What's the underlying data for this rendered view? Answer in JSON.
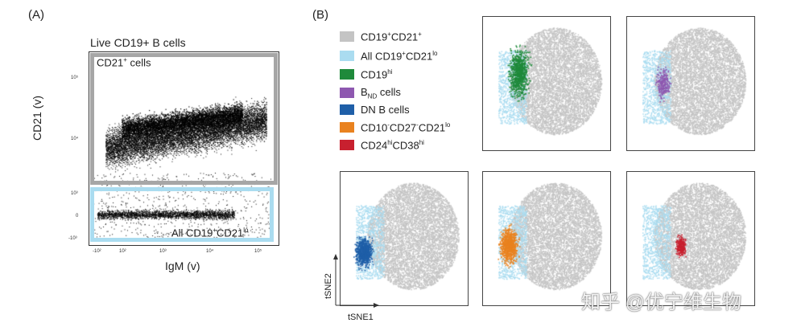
{
  "panel_a": {
    "letter": "(A)",
    "title": "Live CD19+ B cells",
    "gate_top_label_main": "CD21",
    "gate_top_label_sup": "+",
    "gate_top_label_rest": " cells",
    "gate_bottom_label_main": "All CD19",
    "gate_bottom_label_sup1": "+",
    "gate_bottom_label_mid": "CD21",
    "gate_bottom_label_sup2": "lo",
    "y_axis_label": "CD21 (v)",
    "x_axis_label": "IgM (v)",
    "y_ticks": [
      "10⁵",
      "10⁴",
      "10³",
      "0",
      "-10³"
    ],
    "x_ticks": [
      "-10²",
      "10²",
      "10³",
      "10⁴",
      "10⁵"
    ]
  },
  "panel_b": {
    "letter": "(B)",
    "legend": [
      {
        "main": "CD19",
        "sup": "+",
        "rest": "CD21",
        "sup2": "+",
        "sub": "",
        "color": "#c4c4c4"
      },
      {
        "main": "All CD19",
        "sup": "+",
        "rest": "CD21",
        "sup2": "lo",
        "sub": "",
        "color": "#aadcf0"
      },
      {
        "main": "CD19",
        "sup": "hi",
        "rest": "",
        "sup2": "",
        "sub": "",
        "color": "#1f8a3b"
      },
      {
        "main": "B",
        "sup": "",
        "rest": " cells",
        "sup2": "",
        "sub": "ND",
        "color": "#8e58b0"
      },
      {
        "main": "DN B cells",
        "sup": "",
        "rest": "",
        "sup2": "",
        "sub": "",
        "color": "#1f5fa8"
      },
      {
        "main": "CD10",
        "sup": "-",
        "rest": "CD27",
        "sup2": "-",
        "tail": "CD21",
        "sup3": "lo",
        "sub": "",
        "color": "#e9821f"
      },
      {
        "main": "CD24",
        "sup": "hi",
        "rest": "CD38",
        "sup2": "hi",
        "sub": "",
        "color": "#c8202f"
      }
    ],
    "tsne_y_label": "tSNE2",
    "tsne_x_label": "tSNE1",
    "highlight_colors": [
      "#1f8a3b",
      "#8e58b0",
      "#1f5fa8",
      "#e9821f",
      "#c8202f"
    ]
  },
  "watermark": {
    "text": "知乎 @优宁维生物"
  }
}
